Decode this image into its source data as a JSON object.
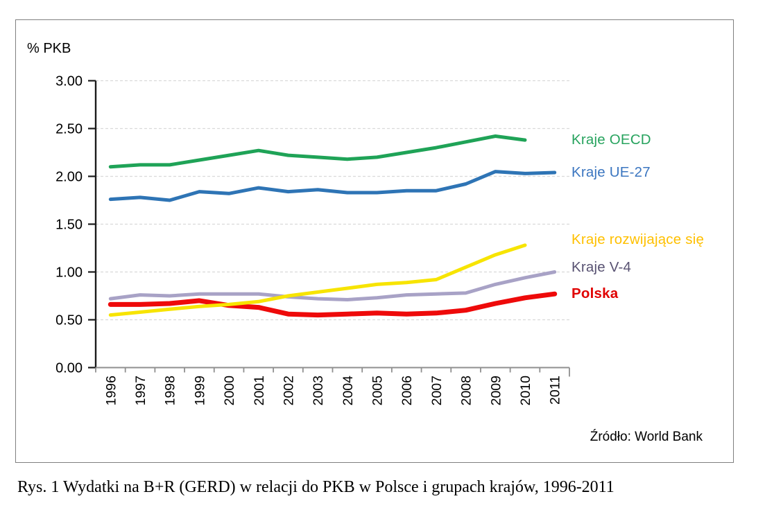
{
  "figure": {
    "y_axis_title": "% PKB",
    "source": "Źródło: World Bank",
    "caption": "Rys. 1 Wydatki na B+R (GERD) w relacji do PKB w Polsce i grupach krajów, 1996-2011"
  },
  "chart_data": {
    "type": "line",
    "title": "",
    "xlabel": "",
    "ylabel": "% PKB",
    "ylim": [
      0,
      3
    ],
    "ytick_step": 0.5,
    "ytick_labels": [
      "0.00",
      "0.50",
      "1.00",
      "1.50",
      "2.00",
      "2.50",
      "3.00"
    ],
    "grid": "horizontal dashed",
    "gridline_color": "#d9d9d9",
    "legend_position": "right of line ends",
    "categories": [
      "1996",
      "1997",
      "1998",
      "1999",
      "2000",
      "2001",
      "2002",
      "2003",
      "2004",
      "2005",
      "2006",
      "2007",
      "2008",
      "2009",
      "2010",
      "2011"
    ],
    "series": [
      {
        "name": "Kraje OECD",
        "color": "#1fa357",
        "label_color": "#27a35e",
        "values": [
          2.1,
          2.12,
          2.12,
          2.17,
          2.22,
          2.27,
          2.22,
          2.2,
          2.18,
          2.2,
          2.25,
          2.3,
          2.36,
          2.42,
          2.38
        ]
      },
      {
        "name": "Kraje UE-27",
        "color": "#2e74b5",
        "label_color": "#3b76c0",
        "values": [
          1.76,
          1.78,
          1.75,
          1.84,
          1.82,
          1.88,
          1.84,
          1.86,
          1.83,
          1.83,
          1.85,
          1.85,
          1.92,
          2.05,
          2.03,
          2.04
        ]
      },
      {
        "name": "Kraje V-4",
        "color": "#a8a2c6",
        "label_color": "#585272",
        "values": [
          0.72,
          0.76,
          0.75,
          0.77,
          0.77,
          0.77,
          0.74,
          0.72,
          0.71,
          0.73,
          0.76,
          0.77,
          0.78,
          0.87,
          0.94,
          1.0
        ]
      },
      {
        "name": "Polska",
        "color": "#ee0a0a",
        "label_color": "#e00000",
        "bold": true,
        "stroke_width": 7,
        "values": [
          0.66,
          0.66,
          0.67,
          0.7,
          0.65,
          0.63,
          0.56,
          0.55,
          0.56,
          0.57,
          0.56,
          0.57,
          0.6,
          0.67,
          0.73,
          0.77
        ]
      },
      {
        "name": "Kraje rozwijające się",
        "color": "#f7e400",
        "label_color": "#ffc000",
        "values": [
          0.55,
          0.58,
          0.61,
          0.64,
          0.66,
          0.69,
          0.75,
          0.79,
          0.83,
          0.87,
          0.89,
          0.92,
          1.05,
          1.18,
          1.28
        ]
      }
    ]
  }
}
